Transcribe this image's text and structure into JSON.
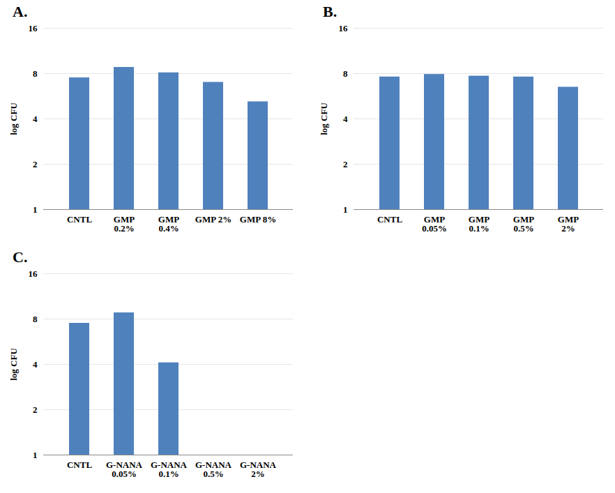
{
  "chart_data": [
    {
      "type": "bar",
      "title": "A.",
      "y_label": "log CFU",
      "categories": [
        "CNTL",
        "GMP\n0.2%",
        "GMP\n0.4%",
        "GMP 2%",
        "GMP 8%"
      ],
      "values": [
        7.5,
        8.8,
        8.1,
        7.0,
        5.2
      ],
      "color": "#4f81bd",
      "log": "y",
      "ylim": [
        1,
        16
      ],
      "yticks": [
        1,
        2,
        4,
        8,
        16
      ],
      "grid": true
    },
    {
      "type": "bar",
      "title": "B.",
      "y_label": "log CFU",
      "categories": [
        "CNTL",
        "GMP\n0.05%",
        "GMP\n0.1%",
        "GMP\n0.5%",
        "GMP\n2%"
      ],
      "values": [
        7.6,
        7.9,
        7.7,
        7.6,
        6.5
      ],
      "color": "#4f81bd",
      "log": "y",
      "ylim": [
        1,
        16
      ],
      "yticks": [
        1,
        2,
        4,
        8,
        16
      ],
      "grid": true
    },
    {
      "type": "bar",
      "title": "C.",
      "y_label": "log CFU",
      "categories": [
        "CNTL",
        "G-NANA\n0.05%",
        "G-NANA\n0.1%",
        "G-NANA\n0.5%",
        "G-NANA\n2%"
      ],
      "values": [
        7.5,
        8.8,
        4.1,
        null,
        null
      ],
      "color": "#4f81bd",
      "log": "y",
      "ylim": [
        1,
        16
      ],
      "yticks": [
        1,
        2,
        4,
        8,
        16
      ],
      "grid": true
    }
  ]
}
